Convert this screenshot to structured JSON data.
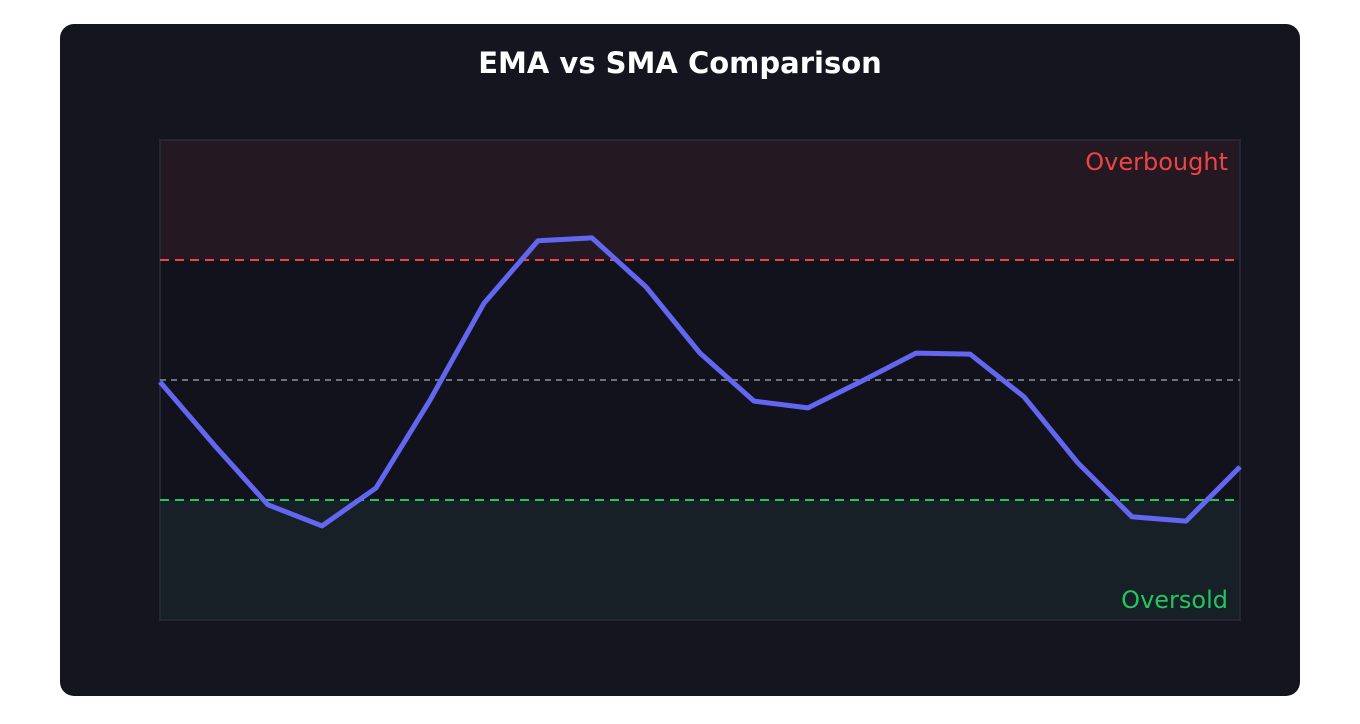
{
  "chart_data": {
    "type": "line",
    "title": "EMA vs SMA Comparison",
    "categories": [
      null,
      null,
      null,
      null,
      null,
      null,
      null,
      null,
      null,
      null,
      null,
      null,
      null,
      null,
      null,
      null,
      null,
      null,
      null,
      null,
      null
    ],
    "series": [
      {
        "color": "#6366f1",
        "values": [
          49.6,
          36.5,
          24.0,
          19.6,
          27.5,
          45.8,
          66.0,
          79.0,
          79.6,
          69.4,
          55.6,
          45.6,
          44.2,
          49.8,
          55.6,
          55.4,
          46.5,
          32.7,
          21.5,
          20.6,
          31.9
        ]
      }
    ],
    "ylim": [
      0,
      100
    ],
    "levels": {
      "overbought": 75,
      "midline": 50,
      "oversold": 25
    },
    "annotations": {
      "overbought": "Overbought",
      "oversold": "Oversold"
    },
    "level_colors": {
      "overbought": "#ef4444",
      "midline": "#6b7280",
      "oversold": "#22c55e"
    }
  }
}
